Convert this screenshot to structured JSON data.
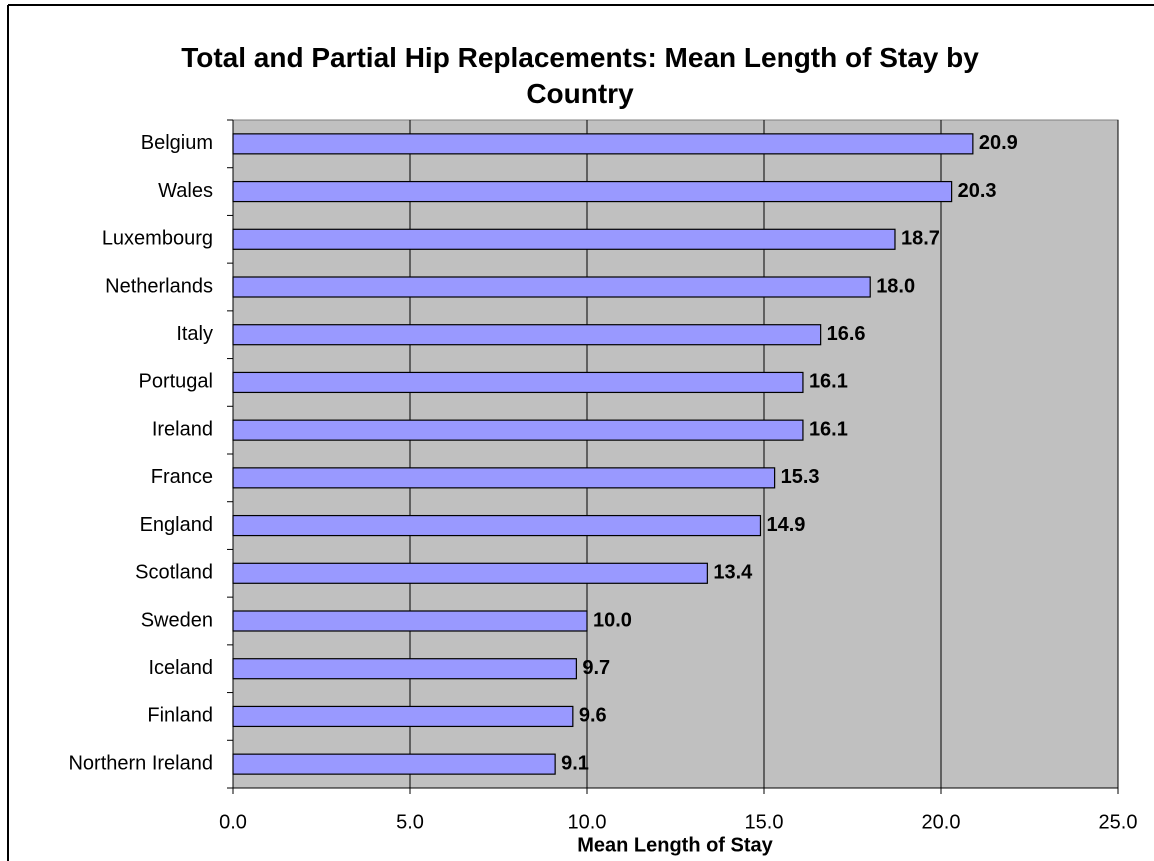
{
  "chart_data": {
    "type": "barh",
    "title": "Total and Partial Hip Replacements: Mean Length of Stay by Country",
    "x_label": "Mean Length of Stay",
    "categories": [
      "Belgium",
      "Wales",
      "Luxembourg",
      "Netherlands",
      "Italy",
      "Portugal",
      "Ireland",
      "France",
      "England",
      "Scotland",
      "Sweden",
      "Iceland",
      "Finland",
      "Northern Ireland"
    ],
    "values": [
      20.9,
      20.3,
      18.7,
      18.0,
      16.6,
      16.1,
      16.1,
      15.3,
      14.9,
      13.4,
      10.0,
      9.7,
      9.6,
      9.1
    ],
    "value_labels": [
      "20.9",
      "20.3",
      "18.7",
      "18.0",
      "16.6",
      "16.1",
      "16.1",
      "15.3",
      "14.9",
      "13.4",
      "10.0",
      "9.7",
      "9.6",
      "9.1"
    ],
    "color": "#9999ff",
    "plot_background": "#c0c0c0",
    "xlim": [
      0,
      25
    ],
    "xticks": [
      {
        "value": 0,
        "label": "0.0"
      },
      {
        "value": 5,
        "label": "5.0"
      },
      {
        "value": 10,
        "label": "10.0"
      },
      {
        "value": 15,
        "label": "15.0"
      },
      {
        "value": 20,
        "label": "20.0"
      },
      {
        "value": 25,
        "label": "25.0"
      }
    ],
    "grid": true
  }
}
